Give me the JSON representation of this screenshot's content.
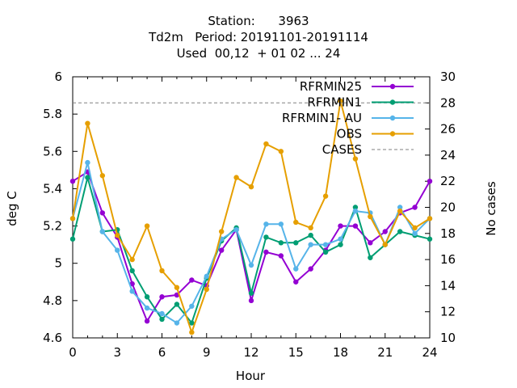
{
  "chart_data": {
    "type": "line",
    "title": [
      "Station:      3963",
      "Td2m   Period: 20191101-20191114",
      "Used  00,12  + 01 02 ... 24"
    ],
    "xlabel": "Hour",
    "ylabel": "deg C",
    "y2label": "No cases",
    "xlim": [
      0,
      24
    ],
    "ylim": [
      4.6,
      6.0
    ],
    "y2lim": [
      10,
      30
    ],
    "xticks": [
      "0",
      "3",
      "6",
      "9",
      "12",
      "15",
      "18",
      "21",
      "24"
    ],
    "yticks": [
      "4.6",
      "4.8",
      "5",
      "5.2",
      "5.4",
      "5.6",
      "5.8",
      "6"
    ],
    "y2ticks": [
      "10",
      "12",
      "14",
      "16",
      "18",
      "20",
      "22",
      "24",
      "26",
      "28",
      "30"
    ],
    "grid": false,
    "legend_position": "top-right",
    "x": [
      0,
      1,
      2,
      3,
      4,
      5,
      6,
      7,
      8,
      9,
      10,
      11,
      12,
      13,
      14,
      15,
      16,
      17,
      18,
      19,
      20,
      21,
      22,
      23,
      24
    ],
    "series": [
      {
        "name": "RFRMIN25",
        "color": "#9400d3",
        "axis": "left",
        "values": [
          5.44,
          5.49,
          5.27,
          5.14,
          4.89,
          4.69,
          4.82,
          4.83,
          4.91,
          4.88,
          5.07,
          5.18,
          4.8,
          5.06,
          5.04,
          4.9,
          4.97,
          5.07,
          5.2,
          5.2,
          5.11,
          5.17,
          5.27,
          5.3,
          5.44
        ]
      },
      {
        "name": "RFRMIN1",
        "color": "#009e73",
        "axis": "left",
        "values": [
          5.13,
          5.46,
          5.17,
          5.18,
          4.96,
          4.82,
          4.7,
          4.78,
          4.68,
          4.92,
          5.12,
          5.19,
          4.84,
          5.14,
          5.11,
          5.11,
          5.15,
          5.06,
          5.1,
          5.3,
          5.03,
          5.1,
          5.17,
          5.15,
          5.13
        ]
      },
      {
        "name": "RFRMIN1- AU",
        "color": "#56b4e9",
        "axis": "left",
        "values": [
          5.24,
          5.54,
          5.17,
          5.07,
          4.85,
          4.76,
          4.73,
          4.68,
          4.77,
          4.93,
          5.13,
          5.18,
          4.99,
          5.21,
          5.21,
          4.97,
          5.1,
          5.1,
          5.13,
          5.28,
          5.27,
          5.1,
          5.3,
          5.16,
          5.24
        ]
      },
      {
        "name": "OBS",
        "color": "#e69f00",
        "axis": "left",
        "values": [
          5.24,
          5.75,
          5.47,
          5.15,
          5.02,
          5.2,
          4.96,
          4.87,
          4.63,
          4.86,
          5.17,
          5.46,
          5.41,
          5.64,
          5.6,
          5.22,
          5.19,
          5.36,
          5.87,
          5.56,
          5.25,
          5.1,
          5.28,
          5.19,
          5.24
        ]
      },
      {
        "name": "CASES",
        "color": "#808080",
        "axis": "right",
        "style": "dashed",
        "values": [
          28,
          28,
          28,
          28,
          28,
          28,
          28,
          28,
          28,
          28,
          28,
          28,
          28,
          28,
          28,
          28,
          28,
          28,
          28,
          28,
          28,
          28,
          28,
          28,
          28
        ]
      }
    ]
  }
}
